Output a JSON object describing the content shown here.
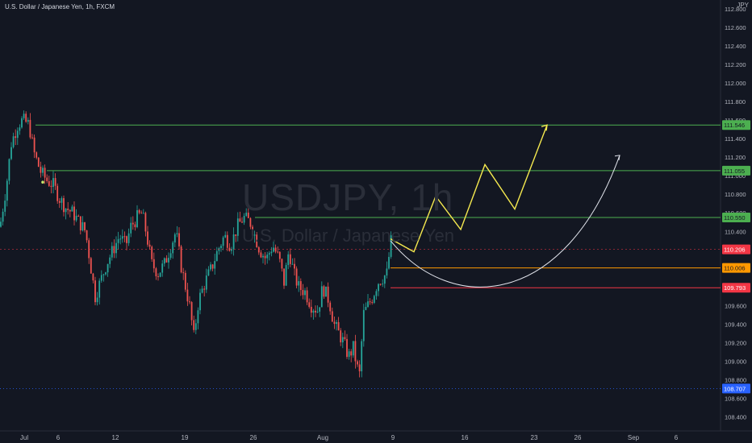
{
  "header": {
    "title": "U.S. Dollar / Japanese Yen, 1h, FXCM",
    "currency": "JPY"
  },
  "watermark": {
    "symbol": "USDJPY, 1h",
    "description": "U.S. Dollar / Japanese Yen"
  },
  "colors": {
    "background": "#131722",
    "up": "#26a69a",
    "down": "#ef5350",
    "green_line": "#4caf50",
    "orange_line": "#ff9800",
    "red_line": "#f23645",
    "yellow_path": "#f5e94f",
    "white_path": "#e0e3eb",
    "last_price_tag": "#f23645",
    "low_tag": "#2962ff"
  },
  "chart_data": {
    "type": "candlestick",
    "title": "U.S. Dollar / Japanese Yen, 1h, FXCM",
    "y_axis": {
      "ticks": [
        108.4,
        108.6,
        108.8,
        109.0,
        109.2,
        109.4,
        109.6,
        109.8,
        110.0,
        110.2,
        110.4,
        110.6,
        110.8,
        111.0,
        111.2,
        111.4,
        111.6,
        111.8,
        112.0,
        112.2,
        112.4,
        112.6,
        112.8
      ],
      "range": [
        108.25,
        112.85
      ]
    },
    "x_axis": {
      "ticks": [
        "Jul",
        "6",
        "12",
        "19",
        "26",
        "Aug",
        "9",
        "16",
        "23",
        "26",
        "Sep",
        "6"
      ]
    },
    "price_path": [
      [
        0,
        110.45
      ],
      [
        8,
        110.9
      ],
      [
        14,
        111.35
      ],
      [
        22,
        111.55
      ],
      [
        28,
        111.6
      ],
      [
        36,
        111.55
      ],
      [
        42,
        111.25
      ],
      [
        50,
        111.05
      ],
      [
        58,
        110.95
      ],
      [
        66,
        110.9
      ],
      [
        74,
        110.75
      ],
      [
        82,
        110.65
      ],
      [
        90,
        110.6
      ],
      [
        98,
        110.5
      ],
      [
        106,
        110.4
      ],
      [
        112,
        110.05
      ],
      [
        118,
        109.7
      ],
      [
        124,
        109.85
      ],
      [
        132,
        110.05
      ],
      [
        140,
        110.2
      ],
      [
        148,
        110.35
      ],
      [
        156,
        110.25
      ],
      [
        162,
        110.45
      ],
      [
        170,
        110.55
      ],
      [
        176,
        110.6
      ],
      [
        182,
        110.35
      ],
      [
        188,
        110.05
      ],
      [
        196,
        109.95
      ],
      [
        204,
        110.05
      ],
      [
        212,
        110.25
      ],
      [
        218,
        110.4
      ],
      [
        224,
        110.05
      ],
      [
        230,
        109.8
      ],
      [
        236,
        109.55
      ],
      [
        240,
        109.25
      ],
      [
        246,
        109.65
      ],
      [
        254,
        109.85
      ],
      [
        262,
        110.0
      ],
      [
        270,
        110.2
      ],
      [
        278,
        110.35
      ],
      [
        286,
        110.25
      ],
      [
        294,
        110.45
      ],
      [
        302,
        110.55
      ],
      [
        310,
        110.5
      ],
      [
        316,
        110.35
      ],
      [
        322,
        110.2
      ],
      [
        330,
        110.1
      ],
      [
        338,
        110.25
      ],
      [
        346,
        110.1
      ],
      [
        352,
        109.85
      ],
      [
        358,
        110.2
      ],
      [
        364,
        109.95
      ],
      [
        370,
        109.8
      ],
      [
        378,
        109.75
      ],
      [
        386,
        109.6
      ],
      [
        394,
        109.55
      ],
      [
        400,
        109.8
      ],
      [
        408,
        109.65
      ],
      [
        414,
        109.4
      ],
      [
        420,
        109.3
      ],
      [
        426,
        109.2
      ],
      [
        432,
        109.05
      ],
      [
        438,
        109.15
      ],
      [
        442,
        108.95
      ],
      [
        446,
        108.85
      ],
      [
        450,
        109.5
      ],
      [
        456,
        109.6
      ],
      [
        462,
        109.7
      ],
      [
        468,
        109.85
      ],
      [
        474,
        109.9
      ],
      [
        480,
        109.95
      ],
      [
        484,
        110.3
      ],
      [
        490,
        110.22
      ]
    ],
    "horizontal_levels": [
      {
        "price": 111.546,
        "label": "111.546",
        "color": "#4caf50"
      },
      {
        "price": 111.055,
        "label": "111.055",
        "color": "#4caf50"
      },
      {
        "price": 110.55,
        "label": "110.550",
        "color": "#4caf50"
      },
      {
        "price": 110.006,
        "label": "110.006",
        "color": "#ff9800"
      },
      {
        "price": 109.793,
        "label": "109.793",
        "color": "#f23645"
      }
    ],
    "last_price": {
      "price": 110.206,
      "label": "110.206"
    },
    "low_marker": {
      "price": 108.707,
      "label": "108.707"
    },
    "projection_zigzag": [
      [
        110.32
      ],
      [
        110.18
      ],
      [
        110.78
      ],
      [
        110.42
      ],
      [
        111.12
      ],
      [
        110.64
      ],
      [
        111.546
      ]
    ],
    "projection_curve": [
      [
        110.3
      ],
      [
        109.82
      ],
      [
        111.22
      ]
    ]
  }
}
